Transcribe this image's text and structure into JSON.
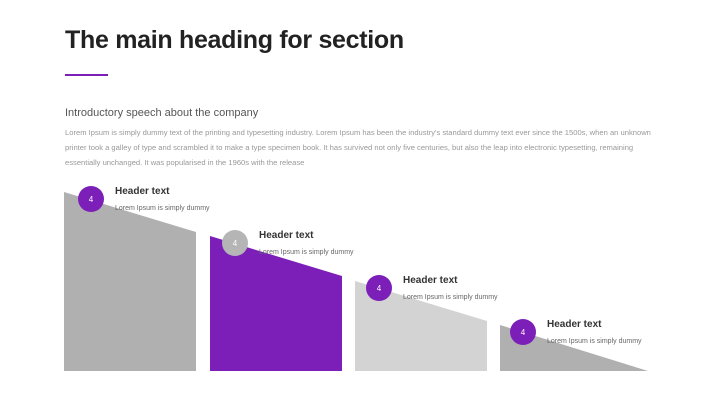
{
  "slide": {
    "title": "The main heading for section",
    "intro_heading": "Introductory speech about the company",
    "intro_body": "Lorem Ipsum is simply dummy text of the printing and typesetting industry. Lorem Ipsum has been the industry's standard dummy text ever since the 1500s, when an unknown printer took a galley of type and scrambled it to make a type specimen book. It has survived not only five centuries, but also the leap into electronic typesetting, remaining essentially unchanged. It was popularised in the 1960s with the release"
  },
  "colors": {
    "accent": "#7b1fb8",
    "dark_gray": "#b0b0b0",
    "light_gray": "#d3d3d3",
    "badge_gray": "#b5b5b5"
  },
  "steps": [
    {
      "badge": "4",
      "title": "Header text",
      "desc": "Lorem Ipsum is simply dummy"
    },
    {
      "badge": "4",
      "title": "Header text",
      "desc": "Lorem Ipsum is simply dummy"
    },
    {
      "badge": "4",
      "title": "Header text",
      "desc": "Lorem Ipsum is simply dummy"
    },
    {
      "badge": "4",
      "title": "Header text",
      "desc": "Lorem Ipsum is simply dummy"
    }
  ]
}
